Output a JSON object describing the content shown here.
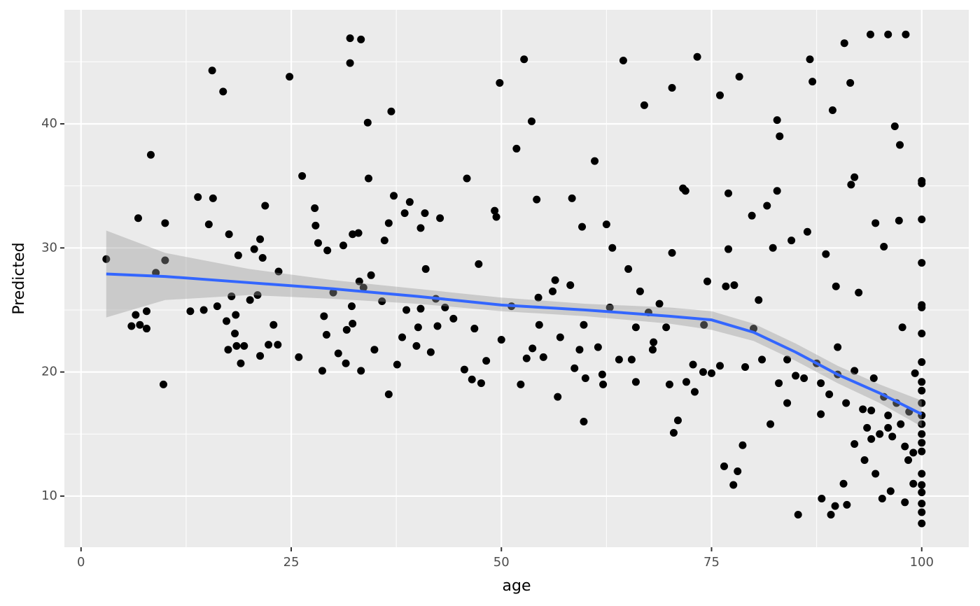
{
  "chart_data": {
    "type": "scatter",
    "x_label": "age",
    "y_label": "Predicted",
    "xlim": [
      -1.98,
      105.6
    ],
    "ylim": [
      5.88,
      49.19
    ],
    "xticks": [
      0,
      25,
      50,
      75,
      100
    ],
    "yticks": [
      10,
      20,
      30,
      40
    ],
    "x_minor_ticks": [
      12.5,
      37.5,
      62.5,
      87.5
    ],
    "y_minor_ticks": [
      15,
      25,
      35,
      45
    ],
    "grid": true,
    "color": "#000000",
    "x": [
      3,
      6,
      6.5,
      6.8,
      7,
      7.8,
      7.8,
      8.3,
      8.9,
      9.8,
      10,
      10,
      13,
      13.9,
      14.6,
      15.2,
      15.6,
      15.7,
      16.2,
      16.9,
      17.3,
      17.5,
      17.6,
      17.9,
      18.3,
      18.4,
      18.5,
      18.7,
      19,
      19.4,
      20.1,
      20.6,
      21,
      21.3,
      21.3,
      21.6,
      21.9,
      22.3,
      22.9,
      23.4,
      23.5,
      24.8,
      25.9,
      26.3,
      27.8,
      27.9,
      28.2,
      28.7,
      28.9,
      29.3,
      29.2,
      30,
      30.6,
      31.2,
      31.5,
      31.6,
      32,
      32,
      32.2,
      32.3,
      32.3,
      33,
      33.1,
      33.3,
      33.3,
      33.6,
      34.1,
      34.2,
      34.5,
      34.9,
      35.8,
      36.1,
      36.6,
      36.6,
      36.9,
      37.2,
      37.6,
      38.2,
      38.5,
      38.7,
      39.1,
      39.9,
      40.1,
      40.4,
      40.4,
      40.9,
      41,
      41.6,
      42.2,
      42.4,
      42.7,
      43.3,
      44.3,
      45.6,
      45.9,
      46.5,
      46.8,
      47.3,
      47.6,
      48.2,
      49.2,
      49.4,
      49.8,
      50,
      51.2,
      51.8,
      52.3,
      52.7,
      53.6,
      53.7,
      54.2,
      54.4,
      54.5,
      56.1,
      56.4,
      56.7,
      58.2,
      58.4,
      58.7,
      59.3,
      59.6,
      59.8,
      59.8,
      61.1,
      61.5,
      62.1,
      62.5,
      62.9,
      63.2,
      64.5,
      65.1,
      65.5,
      66,
      66.5,
      67,
      67.5,
      68.1,
      68.8,
      69.6,
      70.3,
      70.3,
      70.5,
      71,
      71.6,
      71.9,
      72.8,
      73,
      73.3,
      74.1,
      74.5,
      76,
      76.5,
      76.7,
      77,
      77,
      77.6,
      77.7,
      78.1,
      78.3,
      78.7,
      79.8,
      80.6,
      81.6,
      82.3,
      82.8,
      82.8,
      83.1,
      84,
      84.5,
      85.3,
      86.4,
      86.7,
      87,
      88.1,
      88.6,
      89.2,
      89.4,
      89.7,
      89.8,
      90.7,
      90.8,
      91.1,
      91.5,
      91.6,
      92,
      92.5,
      93.2,
      93.9,
      94.5,
      94.5,
      95.3,
      95.5,
      96,
      96.3,
      96.8,
      97.3,
      97.4,
      97.7,
      98,
      98.1,
      98.4,
      99,
      100,
      100,
      100,
      100,
      100,
      100,
      100,
      100,
      100,
      100,
      100,
      100,
      100,
      100,
      100,
      100,
      100,
      100,
      100,
      100,
      100,
      93,
      93.5,
      94,
      94.3,
      95,
      95.5,
      96,
      96.5,
      97,
      97.5,
      98,
      98.5,
      99,
      99.2,
      92,
      91,
      90,
      89,
      88,
      87.5,
      86,
      85,
      84,
      83,
      82,
      81,
      80,
      79,
      76,
      75,
      74,
      72,
      70,
      68,
      66,
      64,
      62,
      60,
      57,
      55,
      53,
      100,
      96,
      94,
      92,
      90,
      88
    ],
    "values": [
      29.1,
      23.7,
      24.6,
      32.4,
      23.8,
      24.9,
      23.5,
      37.5,
      28,
      19,
      32,
      29,
      24.9,
      34.1,
      25,
      31.9,
      44.3,
      34,
      25.3,
      42.6,
      24.1,
      21.8,
      31.1,
      26.1,
      23.1,
      24.6,
      22.1,
      29.4,
      20.7,
      22.1,
      25.8,
      29.9,
      26.2,
      30.7,
      21.3,
      29.2,
      33.4,
      22.2,
      23.8,
      22.2,
      28.1,
      43.8,
      21.2,
      35.8,
      33.2,
      31.8,
      30.4,
      20.1,
      24.5,
      29.8,
      23,
      26.4,
      21.5,
      30.2,
      20.7,
      23.4,
      46.9,
      44.9,
      25.3,
      31.1,
      23.9,
      31.2,
      27.3,
      46.8,
      20.1,
      26.8,
      40.1,
      35.6,
      27.8,
      21.8,
      25.7,
      30.6,
      32,
      18.2,
      41,
      34.2,
      20.6,
      22.8,
      32.8,
      25,
      33.7,
      22.1,
      23.6,
      31.6,
      25.1,
      32.8,
      28.3,
      21.6,
      25.9,
      23.7,
      32.4,
      25.2,
      24.3,
      20.2,
      35.6,
      19.4,
      23.5,
      28.7,
      19.1,
      20.9,
      33,
      32.5,
      43.3,
      22.6,
      25.3,
      38,
      19,
      45.2,
      40.2,
      21.9,
      33.9,
      26,
      23.8,
      26.5,
      27.4,
      18,
      27,
      34,
      20.3,
      21.8,
      31.7,
      16,
      23.8,
      37,
      22,
      19,
      31.9,
      25.2,
      30,
      45.1,
      28.3,
      21,
      23.6,
      26.5,
      41.5,
      24.8,
      22.4,
      25.5,
      23.6,
      42.9,
      29.6,
      15.1,
      16.1,
      34.8,
      34.6,
      20.6,
      18.4,
      45.4,
      23.8,
      27.3,
      42.3,
      12.4,
      26.9,
      34.4,
      29.9,
      10.9,
      27,
      12,
      43.8,
      14.1,
      32.6,
      25.8,
      33.4,
      30,
      40.3,
      34.6,
      39,
      17.5,
      30.6,
      8.5,
      31.3,
      45.2,
      43.4,
      9.8,
      29.5,
      8.5,
      41.1,
      9.2,
      26.9,
      11,
      46.5,
      9.3,
      43.3,
      35.1,
      35.7,
      26.4,
      12.9,
      47.2,
      32,
      11.8,
      9.8,
      30.1,
      47.2,
      10.4,
      39.8,
      32.2,
      38.3,
      23.6,
      9.5,
      47.2,
      12.9,
      11,
      35.4,
      35.2,
      32.3,
      28.8,
      25.4,
      25.2,
      23.1,
      20.8,
      19.2,
      18.5,
      17.5,
      16.5,
      15.8,
      15,
      14.3,
      13.6,
      11.8,
      10.9,
      10.3,
      9.4,
      8.7,
      17,
      15.5,
      14.6,
      19.5,
      15,
      18,
      16.5,
      14.8,
      17.5,
      15.8,
      14,
      16.8,
      13.5,
      19.9,
      14.2,
      17.5,
      19.8,
      18.2,
      19.1,
      20.7,
      19.5,
      19.7,
      21,
      19.1,
      15.8,
      21,
      23.5,
      20.4,
      20.5,
      19.9,
      20,
      19.2,
      19,
      21.8,
      19.2,
      21,
      19.8,
      19.5,
      22.8,
      21.2,
      21.1,
      7.8,
      15.5,
      16.9,
      20.1,
      22,
      16.6
    ],
    "smooth": {
      "color": "#3366ff",
      "band_color": "#999999",
      "x": [
        3,
        10,
        20,
        30,
        40,
        50,
        60,
        70,
        75,
        80,
        85,
        90,
        95,
        100
      ],
      "values": [
        27.9,
        27.7,
        27.2,
        26.7,
        26.1,
        25.4,
        25.0,
        24.5,
        24.2,
        23.2,
        21.6,
        19.8,
        18.3,
        16.6
      ],
      "lower": [
        24.4,
        25.8,
        26.2,
        25.9,
        25.5,
        24.9,
        24.5,
        23.9,
        23.4,
        22.5,
        20.9,
        19.1,
        17.5,
        15.6
      ],
      "upper": [
        31.4,
        29.6,
        28.3,
        27.4,
        26.7,
        26.0,
        25.5,
        25.2,
        24.9,
        23.9,
        22.3,
        20.5,
        19.0,
        17.7
      ]
    }
  }
}
